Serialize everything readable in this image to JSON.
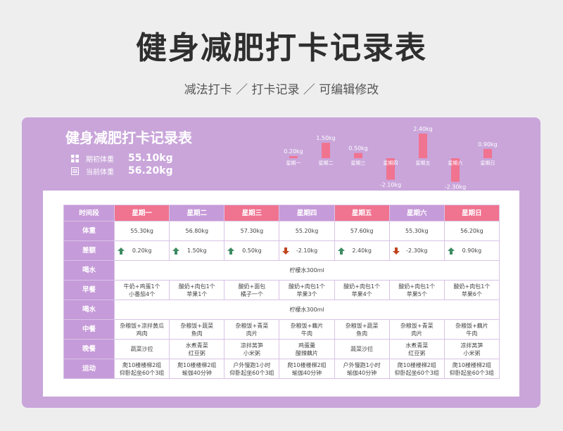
{
  "header": {
    "title": "健身减肥打卡记录表",
    "subtitle": "减法打卡 ／ 打卡记录 ／ 可编辑修改"
  },
  "card": {
    "title": "健身减肥打卡记录表",
    "initial_label": "期初体重",
    "initial_value": "55.10kg",
    "current_label": "当前体重",
    "current_value": "56.20kg"
  },
  "colors": {
    "accent_pink": "#f07390",
    "accent_purple": "#c69bd9",
    "card_bg": "#c9a5da",
    "up_arrow": "#3c8a63",
    "down_arrow": "#c0441e"
  },
  "chart_data": {
    "type": "bar",
    "categories": [
      "星期一",
      "星期二",
      "星期三",
      "星期四",
      "星期五",
      "星期六",
      "星期日"
    ],
    "values": [
      0.2,
      1.5,
      0.5,
      -2.1,
      2.4,
      -2.3,
      0.9
    ],
    "data_labels": [
      "0.20kg",
      "1.50kg",
      "0.50kg",
      "-2.10kg",
      "2.40kg",
      "-2.30kg",
      "0.90kg"
    ],
    "ylim": [
      -2.4,
      2.4
    ],
    "grid": false,
    "legend": "none"
  },
  "table": {
    "corner": "时间段",
    "days": [
      "星期一",
      "星期二",
      "星期三",
      "星期四",
      "星期五",
      "星期六",
      "星期日"
    ],
    "weight_label": "体重",
    "weights": [
      "55.30kg",
      "56.80kg",
      "57.30kg",
      "55.20kg",
      "57.60kg",
      "55.30kg",
      "56.20kg"
    ],
    "diff_label": "差额",
    "diffs": [
      {
        "value": "0.20kg",
        "dir": "up"
      },
      {
        "value": "1.50kg",
        "dir": "up"
      },
      {
        "value": "0.50kg",
        "dir": "up"
      },
      {
        "value": "-2.10kg",
        "dir": "down"
      },
      {
        "value": "2.40kg",
        "dir": "up"
      },
      {
        "value": "-2.30kg",
        "dir": "down"
      },
      {
        "value": "0.90kg",
        "dir": "up"
      }
    ],
    "water1_label": "喝水",
    "water1": "柠檬水300ml",
    "breakfast_label": "早餐",
    "breakfast": [
      [
        "牛奶+鸡蛋1个",
        "小番茄4个"
      ],
      [
        "酸奶+肉包1个",
        "苹果1个"
      ],
      [
        "酸奶+面包",
        "橘子一个"
      ],
      [
        "酸奶+肉包1个",
        "苹果3个"
      ],
      [
        "酸奶+肉包1个",
        "苹果4个"
      ],
      [
        "酸奶+肉包1个",
        "苹果5个"
      ],
      [
        "酸奶+肉包1个",
        "苹果6个"
      ]
    ],
    "water2_label": "喝水",
    "water2": "柠檬水300ml",
    "lunch_label": "中餐",
    "lunch": [
      [
        "杂粮饭+凉拌黄瓜",
        "鸡肉"
      ],
      [
        "杂粮饭+蔬菜",
        "鱼肉"
      ],
      [
        "杂粮饭+青菜",
        "肉片"
      ],
      [
        "杂粮饭+藕片",
        "牛肉"
      ],
      [
        "杂粮饭+蔬菜",
        "鱼肉"
      ],
      [
        "杂粮饭+青菜",
        "肉片"
      ],
      [
        "杂粮饭+藕片",
        "牛肉"
      ]
    ],
    "dinner_label": "晚餐",
    "dinner": [
      [
        "蔬菜沙拉"
      ],
      [
        "水煮青菜",
        "红豆粥"
      ],
      [
        "凉拌莴笋",
        "小米粥"
      ],
      [
        "鸡蛋羹",
        "酸辣藕片"
      ],
      [
        "蔬菜沙拉"
      ],
      [
        "水煮青菜",
        "红豆粥"
      ],
      [
        "凉拌莴笋",
        "小米粥"
      ]
    ],
    "exercise_label": "运动",
    "exercise": [
      [
        "爬10楼楼梯2组",
        "仰卧起坐60个3组"
      ],
      [
        "爬10楼楼梯2组",
        "瑜伽40分钟"
      ],
      [
        "户外慢跑1小时",
        "仰卧起坐60个3组"
      ],
      [
        "爬10楼楼梯2组",
        "瑜伽40分钟"
      ],
      [
        "户外慢跑1小时",
        "瑜伽40分钟"
      ],
      [
        "爬10楼楼梯2组",
        "仰卧起坐60个3组"
      ],
      [
        "爬10楼楼梯2组",
        "仰卧起坐60个3组"
      ]
    ]
  }
}
